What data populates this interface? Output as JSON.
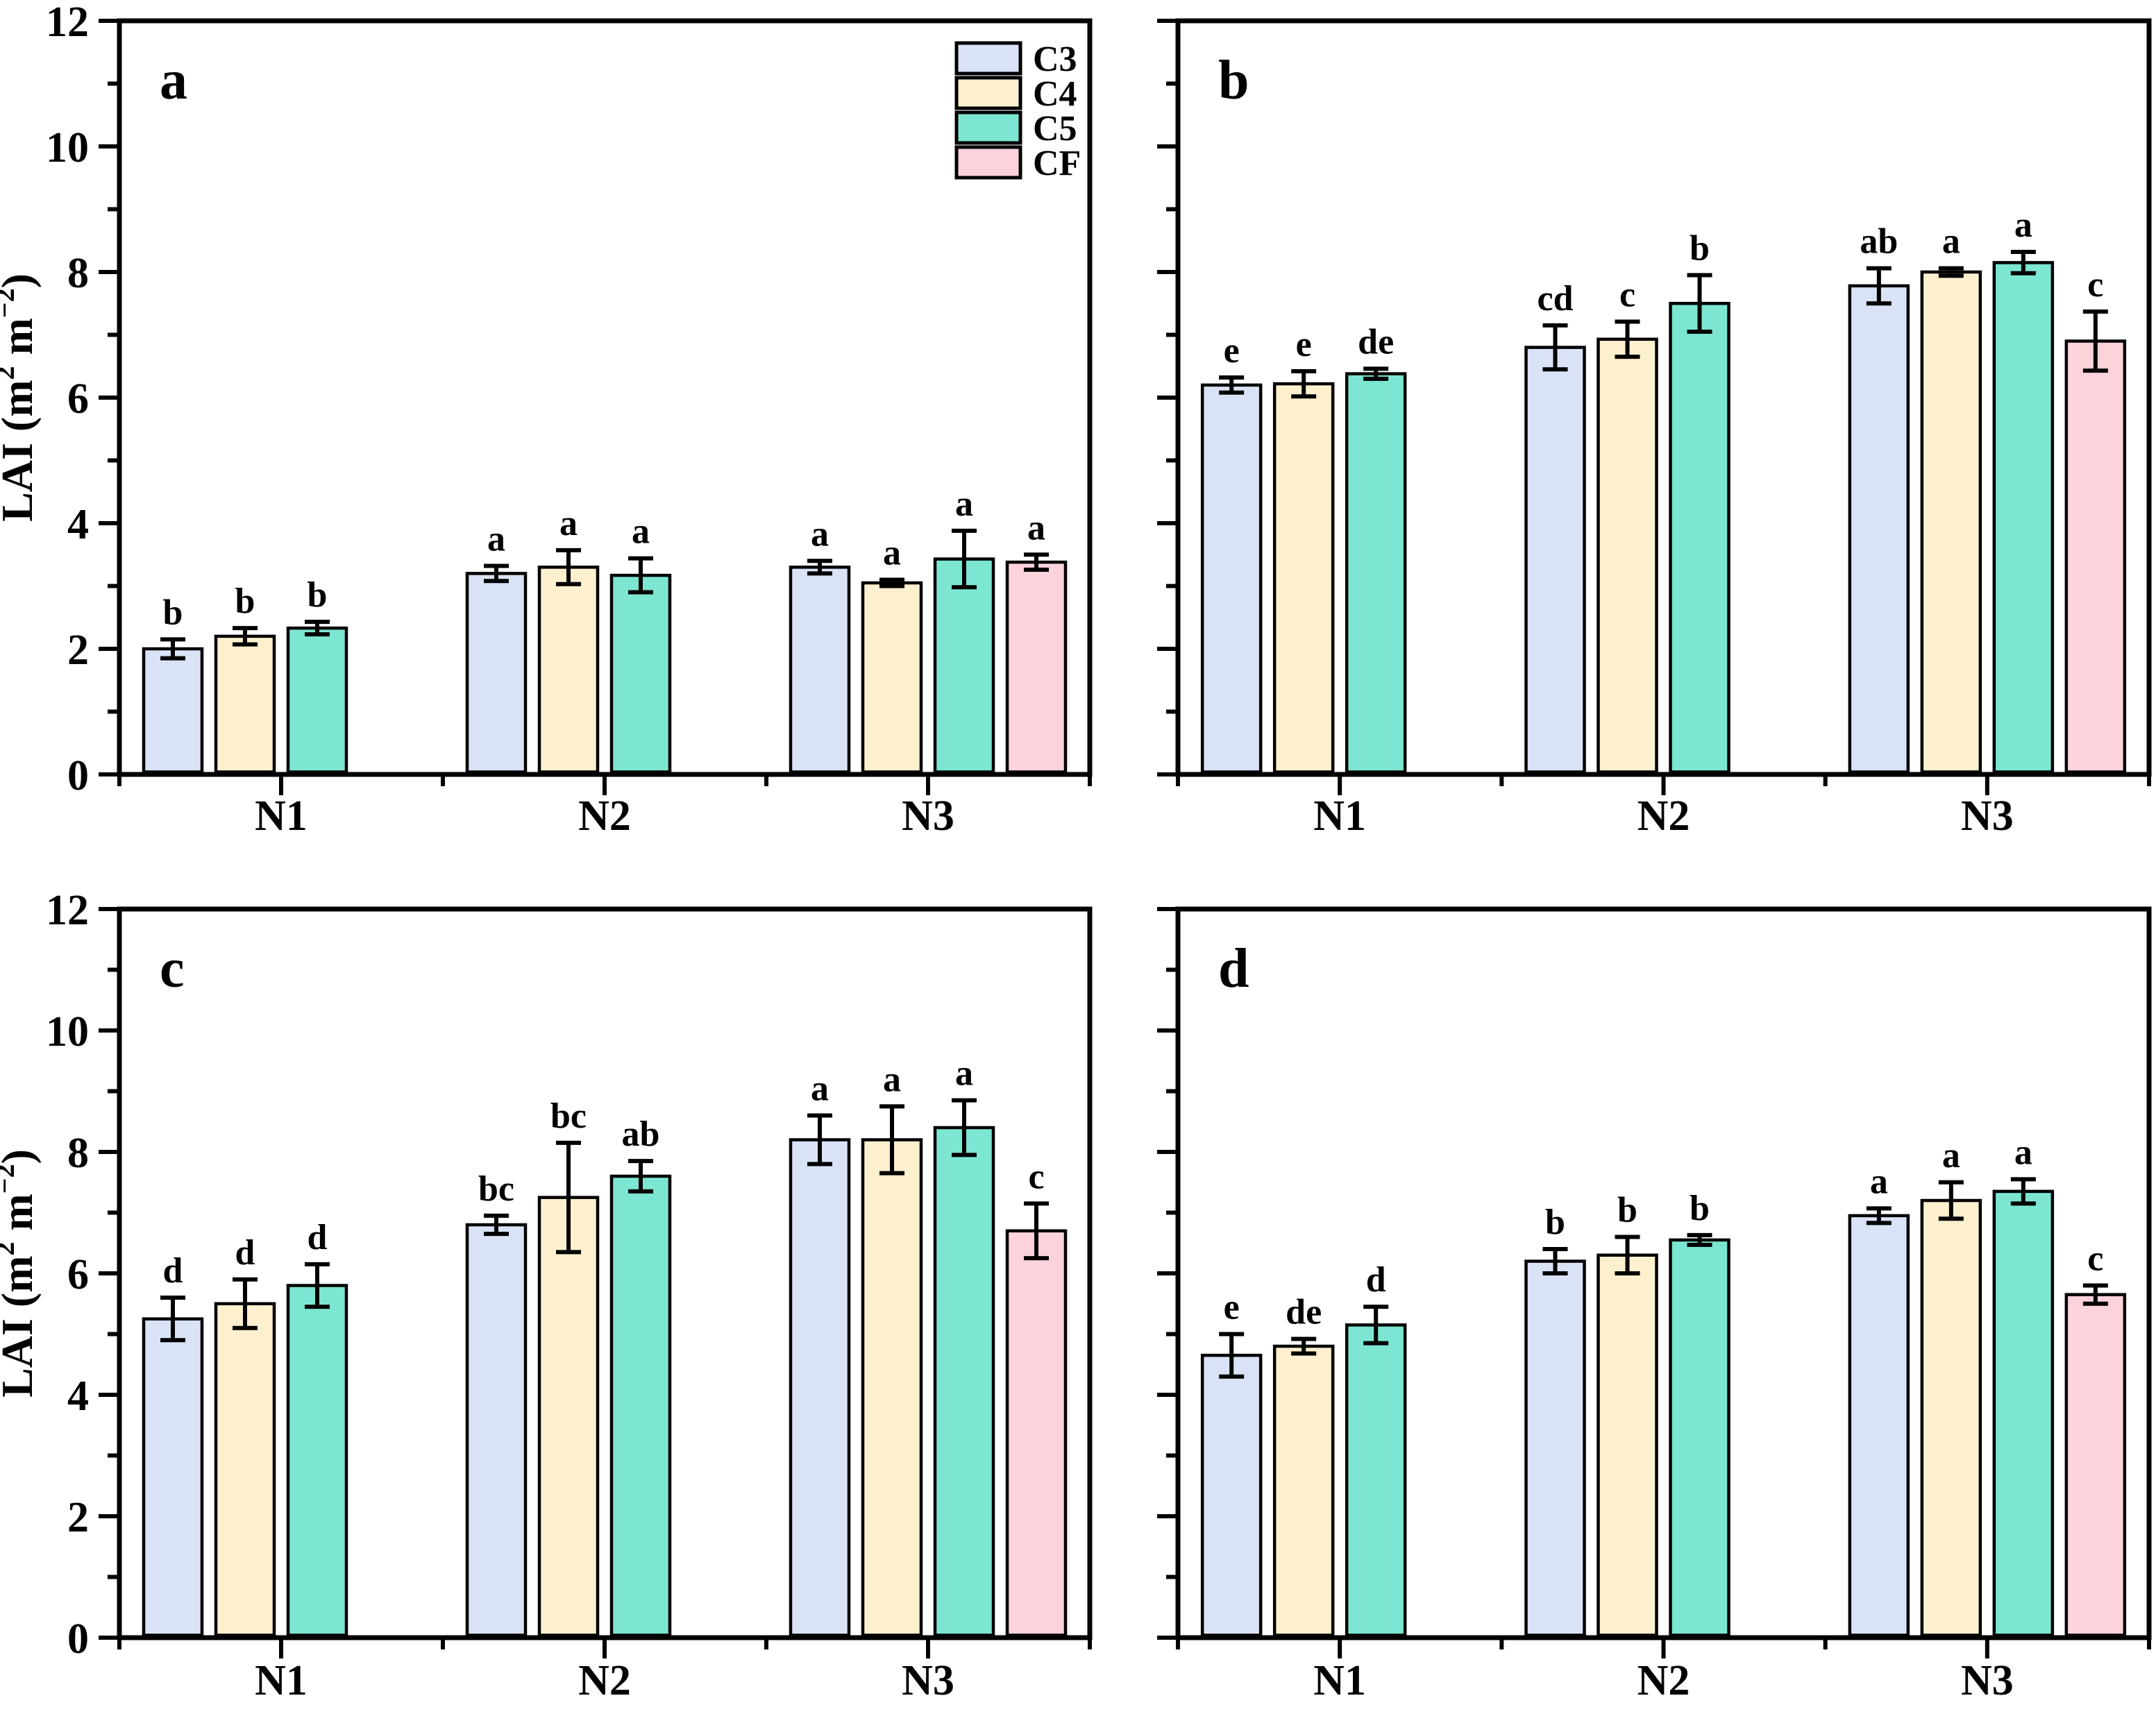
{
  "figure": {
    "background": "#ffffff",
    "ylabel_plain": "LAI (m2 m-2)",
    "ylabel_rich": [
      {
        "t": "LAI (m"
      },
      {
        "t": "2",
        "sup": true
      },
      {
        "t": " m"
      },
      {
        "t": "−2",
        "sup": true
      },
      {
        "t": ")"
      }
    ]
  },
  "legend": {
    "position": "top-right-panel-a",
    "entries": [
      {
        "label": "C3",
        "color": "#d9e3f5"
      },
      {
        "label": "C4",
        "color": "#fdf0ce",
        "border": "#000000"
      },
      {
        "label": "C5",
        "color": "#7de6d2"
      },
      {
        "label": "CF",
        "color": "#fcd3da"
      }
    ]
  },
  "axis": {
    "ylim": [
      0,
      12
    ],
    "major_ticks": [
      0,
      2,
      4,
      6,
      8,
      10,
      12
    ],
    "minor_ticks": [
      1,
      3,
      5,
      7,
      9,
      11
    ],
    "categories": [
      "N1",
      "N2",
      "N3"
    ],
    "grid": false,
    "frame": "full-box",
    "tick_color": "#000000"
  },
  "series_colors": {
    "C3": "#d9e3f5",
    "C4": "#fdf0ce",
    "C5": "#7de6d2",
    "CF": "#fcd3da"
  },
  "chart_data": [
    {
      "panel": "a",
      "type": "bar",
      "title": "",
      "xlabel": "",
      "ylabel": "LAI (m2 m-2)",
      "ylim": [
        0,
        12
      ],
      "categories": [
        "N1",
        "N2",
        "N3"
      ],
      "series": [
        {
          "name": "C3",
          "values": [
            2.0,
            3.2,
            3.3
          ],
          "errors": [
            0.15,
            0.12,
            0.1
          ],
          "letters": [
            "b",
            "a",
            "a"
          ]
        },
        {
          "name": "C4",
          "values": [
            2.2,
            3.3,
            3.05
          ],
          "errors": [
            0.13,
            0.27,
            0.05
          ],
          "letters": [
            "b",
            "a",
            "a"
          ]
        },
        {
          "name": "C5",
          "values": [
            2.33,
            3.17,
            3.43
          ],
          "errors": [
            0.1,
            0.27,
            0.45
          ],
          "letters": [
            "b",
            "a",
            "a"
          ]
        },
        {
          "name": "CF",
          "values": [
            null,
            null,
            3.38
          ],
          "errors": [
            null,
            null,
            0.12
          ],
          "letters": [
            null,
            null,
            "a"
          ]
        }
      ]
    },
    {
      "panel": "b",
      "type": "bar",
      "title": "",
      "xlabel": "",
      "ylabel": "",
      "ylim": [
        0,
        12
      ],
      "categories": [
        "N1",
        "N2",
        "N3"
      ],
      "series": [
        {
          "name": "C3",
          "values": [
            6.2,
            6.8,
            7.78
          ],
          "errors": [
            0.12,
            0.35,
            0.28
          ],
          "letters": [
            "e",
            "cd",
            "ab"
          ]
        },
        {
          "name": "C4",
          "values": [
            6.22,
            6.93,
            8.0
          ],
          "errors": [
            0.2,
            0.28,
            0.06
          ],
          "letters": [
            "e",
            "c",
            "a"
          ]
        },
        {
          "name": "C5",
          "values": [
            6.38,
            7.5,
            8.15
          ],
          "errors": [
            0.08,
            0.45,
            0.17
          ],
          "letters": [
            "de",
            "b",
            "a"
          ]
        },
        {
          "name": "CF",
          "values": [
            null,
            null,
            6.9
          ],
          "errors": [
            null,
            null,
            0.47
          ],
          "letters": [
            null,
            null,
            "c"
          ]
        }
      ]
    },
    {
      "panel": "c",
      "type": "bar",
      "title": "",
      "xlabel": "",
      "ylabel": "LAI (m2 m-2)",
      "ylim": [
        0,
        12
      ],
      "categories": [
        "N1",
        "N2",
        "N3"
      ],
      "series": [
        {
          "name": "C3",
          "values": [
            5.25,
            6.8,
            8.2
          ],
          "errors": [
            0.35,
            0.15,
            0.4
          ],
          "letters": [
            "d",
            "bc",
            "a"
          ]
        },
        {
          "name": "C4",
          "values": [
            5.5,
            7.25,
            8.2
          ],
          "errors": [
            0.4,
            0.9,
            0.55
          ],
          "letters": [
            "d",
            "bc",
            "a"
          ]
        },
        {
          "name": "C5",
          "values": [
            5.8,
            7.6,
            8.4
          ],
          "errors": [
            0.35,
            0.25,
            0.45
          ],
          "letters": [
            "d",
            "ab",
            "a"
          ]
        },
        {
          "name": "CF",
          "values": [
            null,
            null,
            6.7
          ],
          "errors": [
            null,
            null,
            0.45
          ],
          "letters": [
            null,
            null,
            "c"
          ]
        }
      ]
    },
    {
      "panel": "d",
      "type": "bar",
      "title": "",
      "xlabel": "",
      "ylabel": "",
      "ylim": [
        0,
        12
      ],
      "categories": [
        "N1",
        "N2",
        "N3"
      ],
      "series": [
        {
          "name": "C3",
          "values": [
            4.65,
            6.2,
            6.95
          ],
          "errors": [
            0.35,
            0.2,
            0.12
          ],
          "letters": [
            "e",
            "b",
            "a"
          ]
        },
        {
          "name": "C4",
          "values": [
            4.8,
            6.3,
            7.2
          ],
          "errors": [
            0.12,
            0.3,
            0.3
          ],
          "letters": [
            "de",
            "b",
            "a"
          ]
        },
        {
          "name": "C5",
          "values": [
            5.15,
            6.55,
            7.35
          ],
          "errors": [
            0.3,
            0.08,
            0.2
          ],
          "letters": [
            "d",
            "b",
            "a"
          ]
        },
        {
          "name": "CF",
          "values": [
            null,
            null,
            5.65
          ],
          "errors": [
            null,
            null,
            0.15
          ],
          "letters": [
            null,
            null,
            "c"
          ]
        }
      ]
    }
  ]
}
